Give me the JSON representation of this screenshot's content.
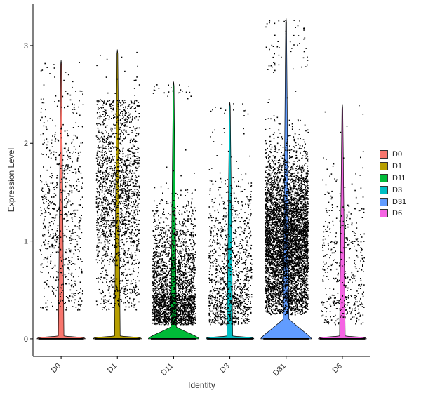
{
  "chart_data": {
    "type": "violin",
    "xlabel": "Identity",
    "ylabel": "Expression Level",
    "ylim": [
      -0.18,
      3.43
    ],
    "yticks": [
      0,
      1,
      2,
      3
    ],
    "categories": [
      "D0",
      "D1",
      "D11",
      "D3",
      "D31",
      "D6"
    ],
    "colors": {
      "D0": "#F8766D",
      "D1": "#B79F00",
      "D11": "#00BA38",
      "D3": "#00BFC4",
      "D31": "#619CFF",
      "D6": "#F564E3"
    },
    "series": [
      {
        "name": "D0",
        "max": 2.85,
        "pos_frac": 0.03,
        "cells": 700,
        "dist_mean": 1.25,
        "dist_sd": 0.65,
        "dist_min": 0.3,
        "dist_max": 2.55
      },
      {
        "name": "D1",
        "max": 2.96,
        "pos_frac": 0.03,
        "cells": 1800,
        "dist_mean": 1.45,
        "dist_sd": 0.6,
        "dist_min": 0.3,
        "dist_max": 2.45
      },
      {
        "name": "D11",
        "max": 2.63,
        "pos_frac": 0.12,
        "cells": 2400,
        "dist_mean": 0.45,
        "dist_sd": 0.45,
        "dist_min": 0.15,
        "dist_max": 2.45
      },
      {
        "name": "D3",
        "max": 2.42,
        "pos_frac": 0.03,
        "cells": 1100,
        "dist_mean": 0.6,
        "dist_sd": 0.55,
        "dist_min": 0.15,
        "dist_max": 2.3
      },
      {
        "name": "D31",
        "max": 3.28,
        "pos_frac": 0.2,
        "cells": 5200,
        "dist_mean": 1.0,
        "dist_sd": 0.45,
        "dist_min": 0.25,
        "dist_max": 2.75
      },
      {
        "name": "D6",
        "max": 2.4,
        "pos_frac": 0.03,
        "cells": 450,
        "dist_mean": 0.7,
        "dist_sd": 0.55,
        "dist_min": 0.15,
        "dist_max": 2.3
      }
    ],
    "legend": {
      "position": "right",
      "entries": [
        "D0",
        "D1",
        "D11",
        "D3",
        "D31",
        "D6"
      ]
    },
    "grid": false
  }
}
